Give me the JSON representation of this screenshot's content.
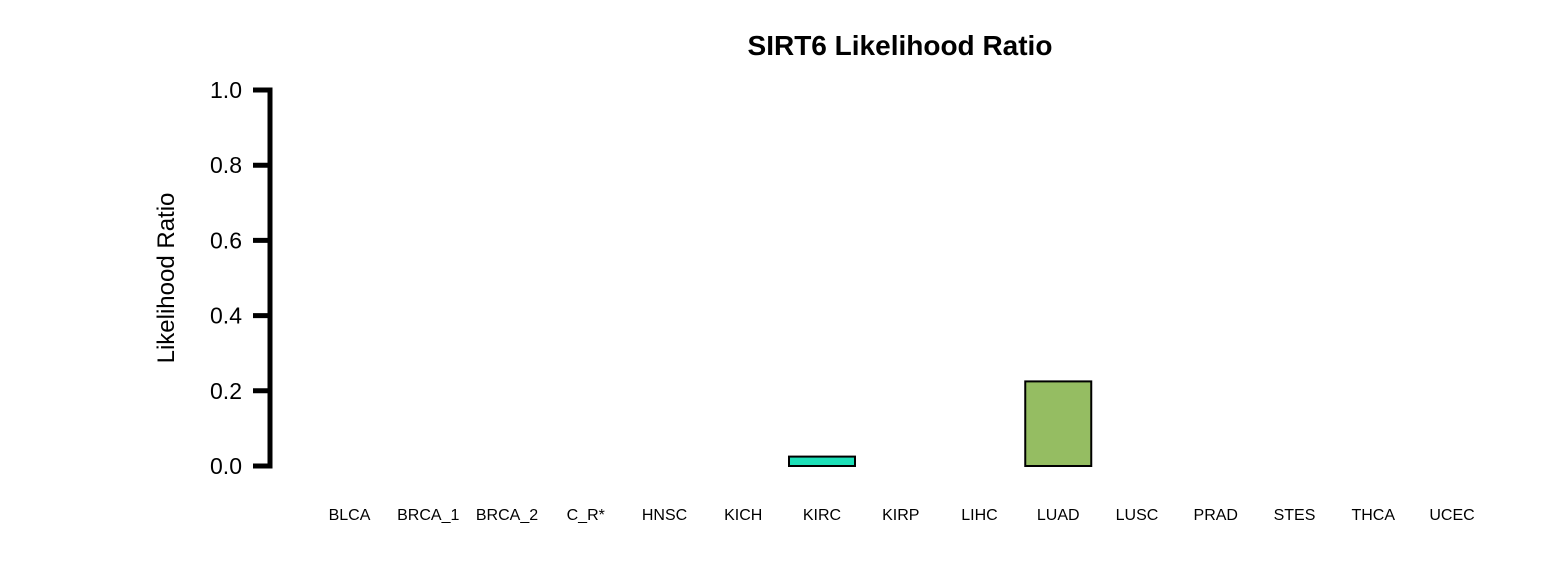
{
  "chart_data": {
    "type": "bar",
    "title": "SIRT6 Likelihood Ratio",
    "xlabel": "",
    "ylabel": "Likelihood Ratio",
    "ylim": [
      0,
      1.0
    ],
    "yticks": [
      "0.0",
      "0.2",
      "0.4",
      "0.6",
      "0.8",
      "1.0"
    ],
    "grid": false,
    "categories": [
      "BLCA",
      "BRCA_1",
      "BRCA_2",
      "C_R*",
      "HNSC",
      "KICH",
      "KIRC",
      "KIRP",
      "LIHC",
      "LUAD",
      "LUSC",
      "PRAD",
      "STES",
      "THCA",
      "UCEC"
    ],
    "values": [
      0,
      0,
      0,
      0,
      0,
      0,
      0.025,
      0,
      0,
      0.225,
      0,
      0,
      0,
      0,
      0
    ],
    "colors": [
      "#ffffff",
      "#ffffff",
      "#ffffff",
      "#ffffff",
      "#ffffff",
      "#ffffff",
      "#1de0b8",
      "#ffffff",
      "#ffffff",
      "#95bd62",
      "#ffffff",
      "#ffffff",
      "#ffffff",
      "#ffffff",
      "#ffffff"
    ],
    "axis_color": "#000000",
    "bar_edge_color": "#000000"
  }
}
